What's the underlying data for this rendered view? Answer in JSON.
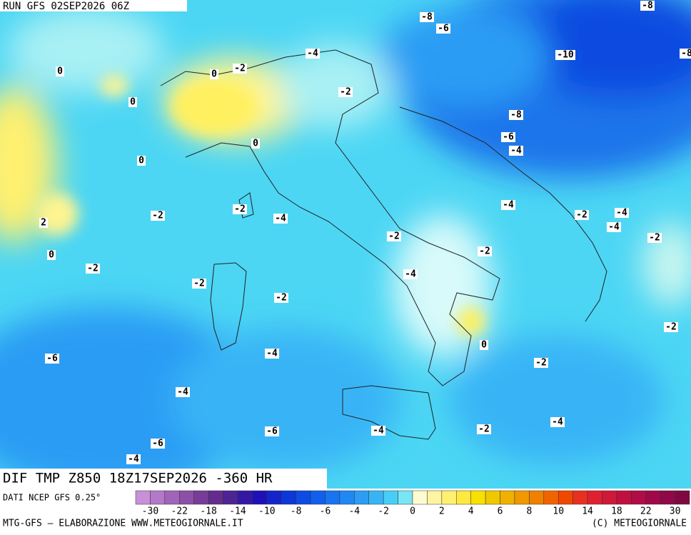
{
  "header": {
    "run": "RUN GFS 02SEP2026 06Z"
  },
  "map": {
    "title": "DIF TMP Z850 18Z17SEP2026 -360 HR",
    "source": "DATI NCEP GFS 0.25°",
    "contour_labels": [
      -8,
      -6,
      -8,
      -10,
      -8,
      -4,
      -2,
      0,
      0,
      -2,
      0,
      -8,
      -6,
      -4,
      0,
      0,
      -4,
      -2,
      -2,
      -4,
      -2,
      -4,
      -4,
      2,
      -2,
      -2,
      -2,
      0,
      -2,
      -4,
      -2,
      -2,
      -2,
      0,
      -6,
      -4,
      -2,
      -4,
      -4,
      -4,
      -2,
      -6,
      -6,
      -4
    ]
  },
  "colorbar": {
    "colors": [
      "#c890d8",
      "#b478c8",
      "#a064b8",
      "#8c50a8",
      "#783c98",
      "#642c8c",
      "#4c2494",
      "#3418a4",
      "#2010b8",
      "#1424cc",
      "#0c38d8",
      "#0c4ce4",
      "#1060ec",
      "#1874f0",
      "#2088f2",
      "#2c9cf4",
      "#38b4f6",
      "#48cef6",
      "#78e6f6",
      "#fffbd0",
      "#fff4a0",
      "#fff070",
      "#ffe840",
      "#f8e000",
      "#f0c800",
      "#f0b000",
      "#f09800",
      "#f08000",
      "#f06400",
      "#f04800",
      "#e83020",
      "#e02030",
      "#d01838",
      "#c01040",
      "#b00c48",
      "#a00848",
      "#900848",
      "#800840"
    ],
    "labels": [
      -30,
      -22,
      -18,
      -14,
      -10,
      -8,
      -6,
      -4,
      -2,
      0,
      2,
      4,
      6,
      8,
      10,
      14,
      18,
      22,
      30
    ]
  },
  "footer": {
    "left": "MTG-GFS – ELABORAZIONE WWW.METEOGIORNALE.IT",
    "right": "(C) METEOGIORNALE"
  }
}
